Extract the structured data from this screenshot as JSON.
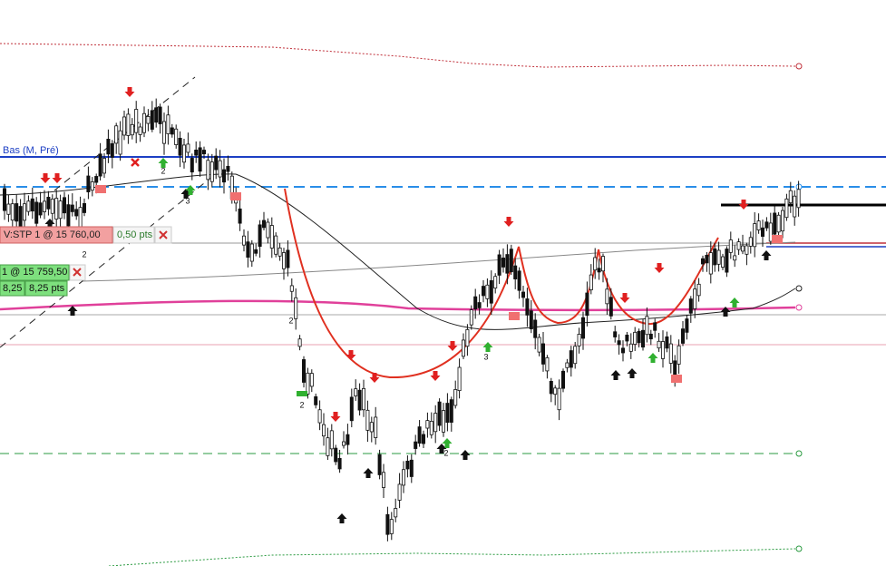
{
  "header": {
    "level_label": "Bas (M, Pré)"
  },
  "orders": {
    "stop_order": "V:STP  1 @ 15 760,00",
    "stop_distance": "0,50 pts",
    "position": "1 @ 15 759,50",
    "pnl": "8,25",
    "pnl_pts": "8,25 pts"
  },
  "annotations": [
    "2",
    "2",
    "2",
    "2",
    "2",
    "3",
    "3"
  ]
}
